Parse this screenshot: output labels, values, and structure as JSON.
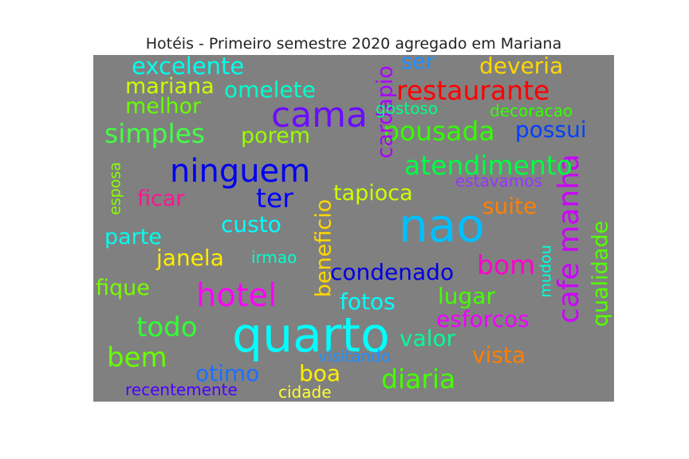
{
  "title": "Hotéis - Primeiro semestre 2020 agregado em Mariana",
  "words": [
    {
      "text": "nao",
      "color": "#00bfff"
    },
    {
      "text": "quarto",
      "color": "#00ffff"
    },
    {
      "text": "cama",
      "color": "#6a0dff"
    },
    {
      "text": "ninguem",
      "color": "#0000ee"
    },
    {
      "text": "hotel",
      "color": "#ff00ff"
    },
    {
      "text": "cafe manha",
      "color": "#cc00ff"
    },
    {
      "text": "restaurante",
      "color": "#ff0000"
    },
    {
      "text": "pousada",
      "color": "#33ff00"
    },
    {
      "text": "atendimento",
      "color": "#00ff40"
    },
    {
      "text": "simples",
      "color": "#44ff44"
    },
    {
      "text": "excelente",
      "color": "#00ffee"
    },
    {
      "text": "deveria",
      "color": "#ffd700"
    },
    {
      "text": "mariana",
      "color": "#ccff00"
    },
    {
      "text": "omelete",
      "color": "#00ffcc"
    },
    {
      "text": "melhor",
      "color": "#66ff00"
    },
    {
      "text": "porem",
      "color": "#99ff00"
    },
    {
      "text": "cardapio",
      "color": "#aa00ff"
    },
    {
      "text": "ser",
      "color": "#1e90ff"
    },
    {
      "text": "gostoso",
      "color": "#00ff80"
    },
    {
      "text": "decoracao",
      "color": "#33ff00"
    },
    {
      "text": "possui",
      "color": "#0040ff"
    },
    {
      "text": "ter",
      "color": "#0000ff"
    },
    {
      "text": "ficar",
      "color": "#ff1493"
    },
    {
      "text": "esposa",
      "color": "#88ff00"
    },
    {
      "text": "parte",
      "color": "#00ffee"
    },
    {
      "text": "custo",
      "color": "#00ffff"
    },
    {
      "text": "beneficio",
      "color": "#ffd700"
    },
    {
      "text": "tapioca",
      "color": "#ccff00"
    },
    {
      "text": "estavamos",
      "color": "#9933ff"
    },
    {
      "text": "suite",
      "color": "#ff8000"
    },
    {
      "text": "qualidade",
      "color": "#55ff00"
    },
    {
      "text": "janela",
      "color": "#ffee00"
    },
    {
      "text": "irmao",
      "color": "#00ffcc"
    },
    {
      "text": "condenado",
      "color": "#0000dd"
    },
    {
      "text": "bom",
      "color": "#ff00cc"
    },
    {
      "text": "mudou",
      "color": "#00ffdd"
    },
    {
      "text": "fique",
      "color": "#77ff00"
    },
    {
      "text": "lugar",
      "color": "#44ff00"
    },
    {
      "text": "fotos",
      "color": "#00ffff"
    },
    {
      "text": "todo",
      "color": "#33ff33"
    },
    {
      "text": "esforcos",
      "color": "#ee00ff"
    },
    {
      "text": "valor",
      "color": "#00ff99"
    },
    {
      "text": "bem",
      "color": "#66ff00"
    },
    {
      "text": "visitando",
      "color": "#1e90ff"
    },
    {
      "text": "vista",
      "color": "#ff7f00"
    },
    {
      "text": "otimo",
      "color": "#1e6fff"
    },
    {
      "text": "boa",
      "color": "#ffee00"
    },
    {
      "text": "diaria",
      "color": "#44ff00"
    },
    {
      "text": "recentemente",
      "color": "#4b00ff"
    },
    {
      "text": "cidade",
      "color": "#ffff33"
    }
  ]
}
